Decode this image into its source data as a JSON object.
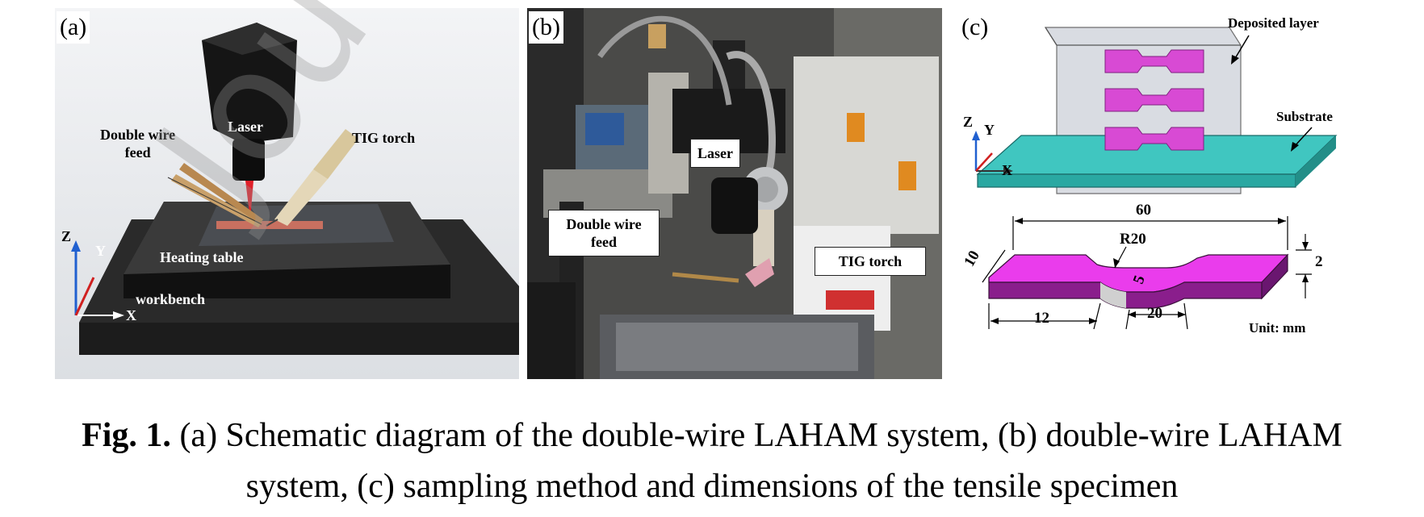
{
  "watermark": "Jou",
  "panel_a": {
    "label": "(a)",
    "laser": "Laser",
    "double_wire_feed_1": "Double wire",
    "double_wire_feed_2": "feed",
    "tig_torch": "TIG torch",
    "heating_table": "Heating table",
    "workbench": "workbench",
    "axis_z": "Z",
    "axis_y": "Y",
    "axis_x": "X"
  },
  "panel_b": {
    "label": "(b)",
    "laser": "Laser",
    "double_wire_feed_1": "Double wire",
    "double_wire_feed_2": "feed",
    "tig_torch": "TIG torch"
  },
  "panel_c": {
    "label": "(c)",
    "deposited_layer": "Deposited layer",
    "substrate": "Substrate",
    "axis_z": "Z",
    "axis_y": "Y",
    "axis_x": "X",
    "dim_60": "60",
    "dim_r20": "R20",
    "dim_10": "10",
    "dim_5": "5",
    "dim_2": "2",
    "dim_12": "12",
    "dim_20": "20",
    "unit": "Unit: mm"
  },
  "caption": {
    "fig_label": "Fig. 1.",
    "line1": "(a) Schematic diagram of the double-wire LAHAM system, (b) double-wire LAHAM",
    "line2": "system, (c) sampling method and dimensions of the tensile specimen"
  }
}
